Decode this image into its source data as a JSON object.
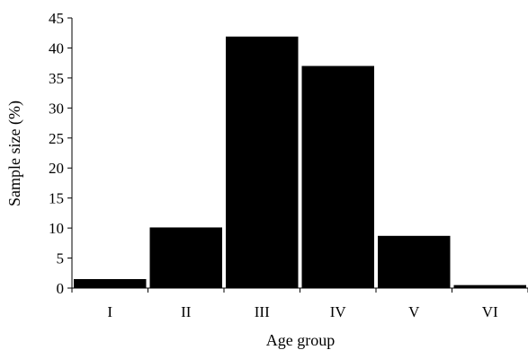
{
  "chart_data": {
    "type": "bar",
    "xlabel": "Age group",
    "ylabel": "Sample size (%)",
    "categories": [
      "I",
      "II",
      "III",
      "IV",
      "V",
      "VI"
    ],
    "values": [
      1.5,
      10.1,
      41.9,
      37.0,
      8.7,
      0.5
    ],
    "ylim": [
      0,
      45
    ],
    "yticks": [
      0,
      5,
      10,
      15,
      20,
      25,
      30,
      35,
      40,
      45
    ],
    "grid": false,
    "legend": "none",
    "bar_color": "#000000"
  }
}
